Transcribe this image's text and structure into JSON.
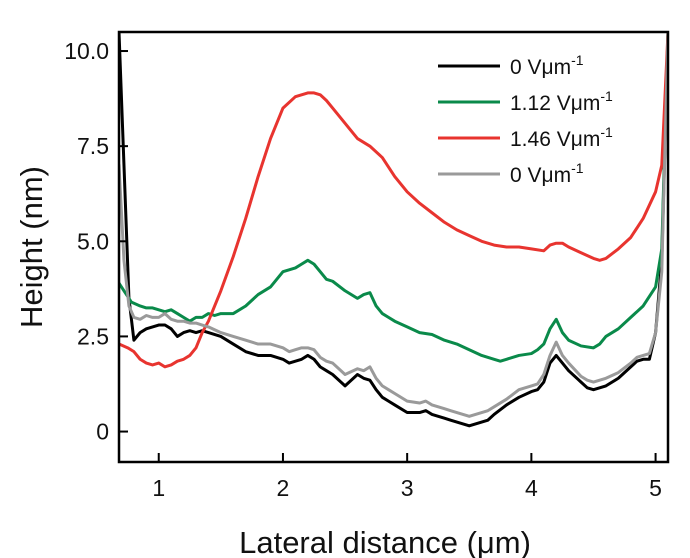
{
  "chart_data": {
    "type": "line",
    "title": "",
    "xlabel": "Lateral distance (μm)",
    "ylabel": "Height (nm)",
    "xlim": [
      0.68,
      5.1
    ],
    "ylim": [
      -0.8,
      10.5
    ],
    "xticks": [
      1,
      2,
      3,
      4,
      5
    ],
    "yticks": [
      0,
      2.5,
      5.0,
      7.5,
      10.0
    ],
    "ytick_labels": [
      "0",
      "2.5",
      "5.0",
      "7.5",
      "10.0"
    ],
    "xtick_labels": [
      "1",
      "2",
      "3",
      "4",
      "5"
    ],
    "grid": false,
    "legend_position": "top-right",
    "series": [
      {
        "name": "0 Vμm⁻¹",
        "label_base": "0 Vμm",
        "label_sup": "-1",
        "color": "#000000",
        "x": [
          0.68,
          0.72,
          0.76,
          0.8,
          0.85,
          0.9,
          0.95,
          1.0,
          1.05,
          1.1,
          1.15,
          1.2,
          1.25,
          1.3,
          1.35,
          1.4,
          1.5,
          1.6,
          1.7,
          1.8,
          1.9,
          2.0,
          2.05,
          2.1,
          2.15,
          2.2,
          2.25,
          2.3,
          2.35,
          2.4,
          2.5,
          2.6,
          2.65,
          2.7,
          2.75,
          2.8,
          2.85,
          2.9,
          3.0,
          3.1,
          3.15,
          3.2,
          3.25,
          3.3,
          3.35,
          3.4,
          3.5,
          3.55,
          3.6,
          3.65,
          3.7,
          3.8,
          3.9,
          4.0,
          4.05,
          4.1,
          4.15,
          4.2,
          4.25,
          4.3,
          4.4,
          4.45,
          4.5,
          4.55,
          4.6,
          4.7,
          4.8,
          4.85,
          4.9,
          4.95,
          5.0,
          5.05,
          5.1
        ],
        "y": [
          10.5,
          7.0,
          3.5,
          2.4,
          2.6,
          2.7,
          2.75,
          2.8,
          2.8,
          2.7,
          2.5,
          2.6,
          2.65,
          2.6,
          2.65,
          2.6,
          2.5,
          2.3,
          2.1,
          2.0,
          2.0,
          1.9,
          1.8,
          1.85,
          1.9,
          2.0,
          1.9,
          1.7,
          1.6,
          1.5,
          1.2,
          1.5,
          1.4,
          1.35,
          1.1,
          0.9,
          0.8,
          0.7,
          0.5,
          0.5,
          0.55,
          0.45,
          0.4,
          0.35,
          0.3,
          0.25,
          0.15,
          0.2,
          0.25,
          0.3,
          0.45,
          0.7,
          0.9,
          1.05,
          1.1,
          1.3,
          1.8,
          2.0,
          1.8,
          1.6,
          1.3,
          1.15,
          1.1,
          1.15,
          1.2,
          1.4,
          1.7,
          1.85,
          1.9,
          1.9,
          2.6,
          4.5,
          10.5
        ]
      },
      {
        "name": "1.12 Vμm⁻¹",
        "label_base": "1.12 Vμm",
        "label_sup": "-1",
        "color": "#0a8a4a",
        "x": [
          0.68,
          0.72,
          0.78,
          0.85,
          0.9,
          0.95,
          1.0,
          1.05,
          1.1,
          1.15,
          1.2,
          1.25,
          1.3,
          1.35,
          1.4,
          1.45,
          1.5,
          1.6,
          1.7,
          1.8,
          1.9,
          2.0,
          2.05,
          2.1,
          2.15,
          2.2,
          2.25,
          2.3,
          2.35,
          2.4,
          2.5,
          2.6,
          2.65,
          2.7,
          2.75,
          2.8,
          2.85,
          2.9,
          3.0,
          3.1,
          3.2,
          3.3,
          3.4,
          3.5,
          3.6,
          3.7,
          3.75,
          3.8,
          3.9,
          4.0,
          4.05,
          4.1,
          4.15,
          4.2,
          4.25,
          4.3,
          4.4,
          4.5,
          4.55,
          4.6,
          4.7,
          4.8,
          4.9,
          5.0,
          5.05,
          5.1
        ],
        "y": [
          3.9,
          3.7,
          3.4,
          3.3,
          3.25,
          3.25,
          3.2,
          3.15,
          3.2,
          3.1,
          3.0,
          2.9,
          3.0,
          3.0,
          3.1,
          3.05,
          3.1,
          3.1,
          3.3,
          3.6,
          3.8,
          4.2,
          4.25,
          4.3,
          4.4,
          4.5,
          4.4,
          4.2,
          4.0,
          3.95,
          3.7,
          3.5,
          3.6,
          3.65,
          3.3,
          3.1,
          3.0,
          2.9,
          2.75,
          2.6,
          2.55,
          2.4,
          2.3,
          2.15,
          2.0,
          1.9,
          1.85,
          1.9,
          2.0,
          2.05,
          2.15,
          2.3,
          2.7,
          2.95,
          2.6,
          2.4,
          2.25,
          2.2,
          2.3,
          2.5,
          2.7,
          3.0,
          3.3,
          3.8,
          4.8,
          10.5
        ]
      },
      {
        "name": "1.46 Vμm⁻¹",
        "label_base": "1.46 Vμm",
        "label_sup": "-1",
        "color": "#e8342f",
        "x": [
          0.68,
          0.75,
          0.8,
          0.85,
          0.9,
          0.95,
          1.0,
          1.05,
          1.1,
          1.15,
          1.2,
          1.25,
          1.3,
          1.35,
          1.4,
          1.5,
          1.6,
          1.7,
          1.8,
          1.9,
          2.0,
          2.1,
          2.2,
          2.25,
          2.3,
          2.35,
          2.4,
          2.5,
          2.6,
          2.7,
          2.8,
          2.9,
          3.0,
          3.1,
          3.2,
          3.3,
          3.4,
          3.5,
          3.6,
          3.7,
          3.8,
          3.9,
          4.0,
          4.1,
          4.15,
          4.2,
          4.25,
          4.3,
          4.4,
          4.5,
          4.55,
          4.6,
          4.7,
          4.8,
          4.9,
          5.0,
          5.05,
          5.1
        ],
        "y": [
          2.3,
          2.2,
          2.1,
          1.9,
          1.8,
          1.75,
          1.8,
          1.7,
          1.75,
          1.85,
          1.9,
          2.0,
          2.2,
          2.6,
          2.9,
          3.7,
          4.6,
          5.6,
          6.7,
          7.7,
          8.5,
          8.8,
          8.9,
          8.9,
          8.85,
          8.7,
          8.5,
          8.1,
          7.7,
          7.5,
          7.2,
          6.7,
          6.3,
          6.0,
          5.75,
          5.5,
          5.3,
          5.15,
          5.0,
          4.9,
          4.85,
          4.85,
          4.8,
          4.75,
          4.9,
          4.95,
          4.95,
          4.85,
          4.7,
          4.55,
          4.5,
          4.55,
          4.8,
          5.1,
          5.6,
          6.3,
          7.0,
          10.5
        ]
      },
      {
        "name": "0 Vμm⁻¹",
        "label_base": "0 Vμm",
        "label_sup": "-1",
        "color": "#9a9a9a",
        "x": [
          0.68,
          0.72,
          0.76,
          0.8,
          0.85,
          0.9,
          0.95,
          1.0,
          1.05,
          1.1,
          1.15,
          1.2,
          1.25,
          1.3,
          1.35,
          1.4,
          1.5,
          1.6,
          1.7,
          1.8,
          1.9,
          2.0,
          2.05,
          2.1,
          2.15,
          2.2,
          2.25,
          2.3,
          2.35,
          2.4,
          2.5,
          2.6,
          2.65,
          2.7,
          2.75,
          2.8,
          2.85,
          2.9,
          3.0,
          3.1,
          3.15,
          3.2,
          3.25,
          3.3,
          3.35,
          3.4,
          3.5,
          3.55,
          3.6,
          3.65,
          3.7,
          3.8,
          3.9,
          4.0,
          4.05,
          4.1,
          4.15,
          4.2,
          4.25,
          4.3,
          4.4,
          4.45,
          4.5,
          4.55,
          4.6,
          4.7,
          4.8,
          4.85,
          4.9,
          4.95,
          5.0,
          5.05,
          5.1
        ],
        "y": [
          7.0,
          4.5,
          3.3,
          3.0,
          2.95,
          3.05,
          3.0,
          3.0,
          3.1,
          2.95,
          2.9,
          2.9,
          2.85,
          2.85,
          2.8,
          2.75,
          2.6,
          2.5,
          2.4,
          2.3,
          2.3,
          2.2,
          2.1,
          2.15,
          2.2,
          2.2,
          2.15,
          1.95,
          1.85,
          1.8,
          1.5,
          1.65,
          1.6,
          1.7,
          1.4,
          1.2,
          1.1,
          1.0,
          0.8,
          0.75,
          0.8,
          0.7,
          0.65,
          0.6,
          0.55,
          0.5,
          0.4,
          0.45,
          0.5,
          0.55,
          0.65,
          0.85,
          1.1,
          1.2,
          1.25,
          1.5,
          2.0,
          2.35,
          2.0,
          1.8,
          1.45,
          1.35,
          1.3,
          1.35,
          1.4,
          1.55,
          1.8,
          1.95,
          2.0,
          2.05,
          2.6,
          4.2,
          10.5
        ]
      }
    ]
  }
}
